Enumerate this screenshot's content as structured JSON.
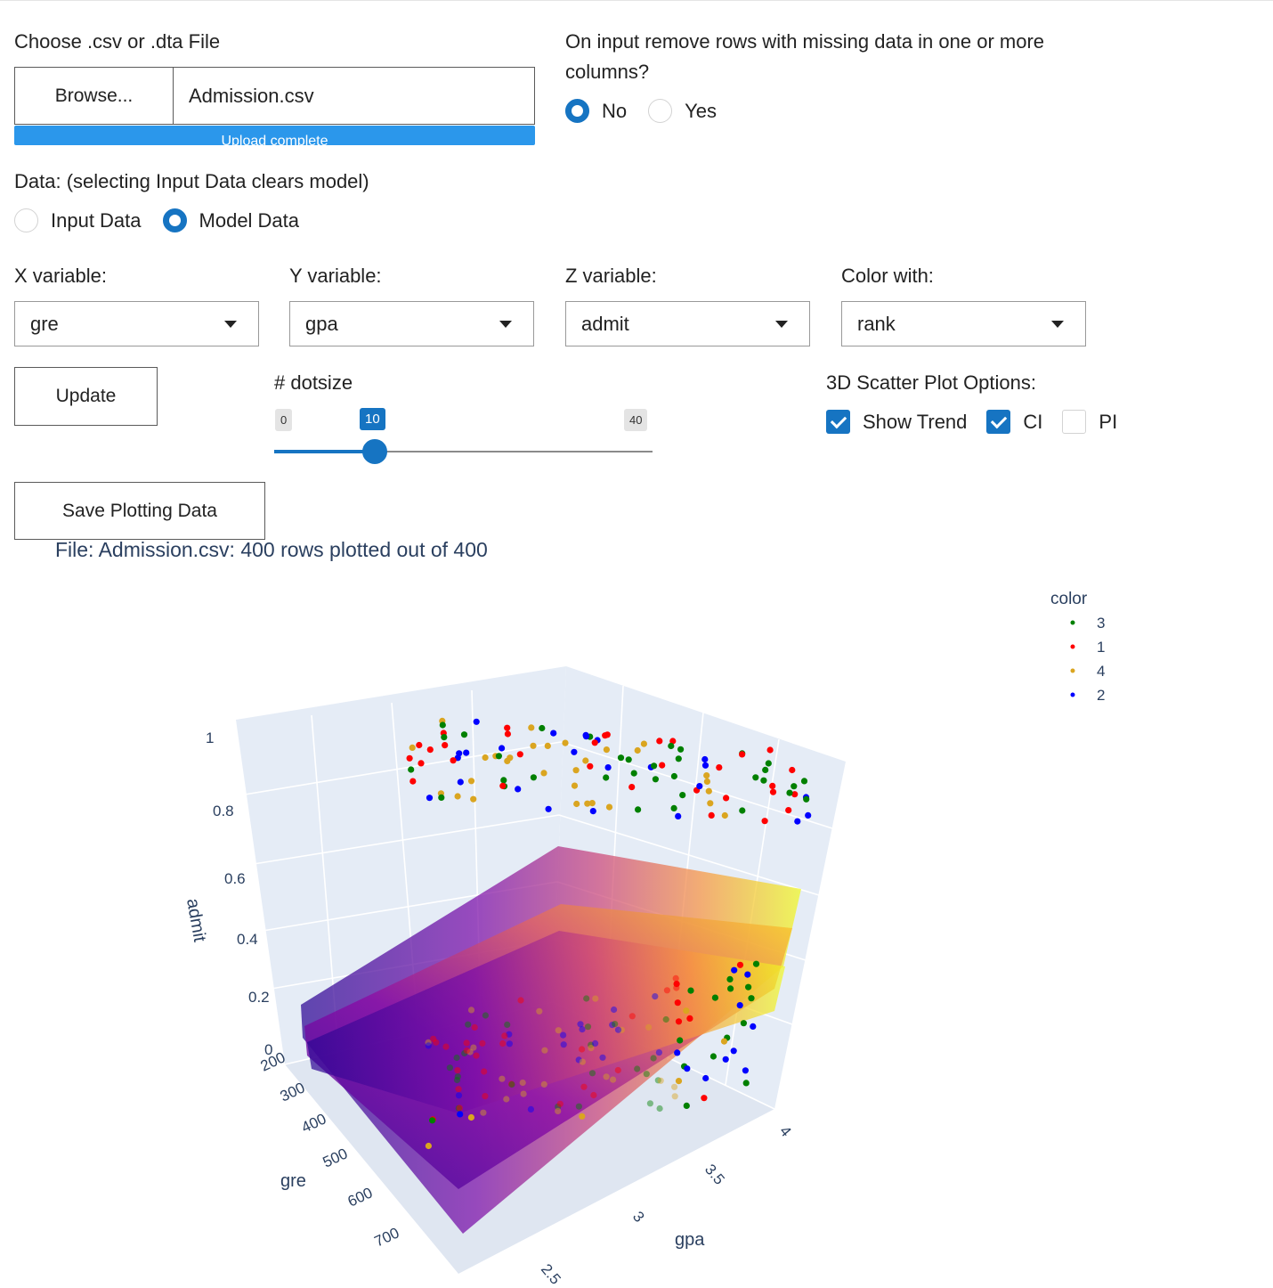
{
  "file_input": {
    "label": "Choose .csv or .dta File",
    "browse_label": "Browse...",
    "filename": "Admission.csv",
    "upload_status": "Upload complete",
    "upload_progress": 1.0
  },
  "missing_rows": {
    "label": "On input remove rows with missing data in one or more columns?",
    "options": [
      "No",
      "Yes"
    ],
    "selected": "No"
  },
  "data_source": {
    "label": "Data: (selecting Input Data clears model)",
    "options": [
      "Input Data",
      "Model Data"
    ],
    "selected": "Model Data"
  },
  "variables": {
    "x": {
      "label": "X variable:",
      "value": "gre"
    },
    "y": {
      "label": "Y variable:",
      "value": "gpa"
    },
    "z": {
      "label": "Z variable:",
      "value": "admit"
    },
    "color": {
      "label": "Color with:",
      "value": "rank"
    }
  },
  "update_label": "Update",
  "dotsize": {
    "label": "# dotsize",
    "min": "0",
    "max": "40",
    "value": "10",
    "fraction": 0.25
  },
  "scatter_options": {
    "label": "3D Scatter Plot Options:",
    "items": [
      {
        "label": "Show Trend",
        "checked": true
      },
      {
        "label": "CI",
        "checked": true
      },
      {
        "label": "PI",
        "checked": false
      }
    ]
  },
  "save_label": "Save Plotting Data",
  "status_text": "File: Admission.csv:  400 rows plotted out of 400",
  "colors": {
    "accent": "#1674c2",
    "progress": "#2b97eb",
    "scene_bg": "#e5ecf6",
    "axis_text": "#2a3f5f"
  },
  "chart_data": {
    "type": "scatter3d",
    "title": "",
    "xlabel": "gre",
    "ylabel": "gpa",
    "zlabel": "admit",
    "x_ticks": [
      "200",
      "300",
      "400",
      "500",
      "600",
      "700"
    ],
    "y_ticks": [
      "2.5",
      "3",
      "3.5",
      "4"
    ],
    "z_ticks": [
      "0",
      "0.2",
      "0.4",
      "0.6",
      "0.8",
      "1"
    ],
    "legend_title": "color",
    "legend_placement": "top-right",
    "series": [
      {
        "name": "3",
        "color": "#008000"
      },
      {
        "name": "1",
        "color": "#ff0000"
      },
      {
        "name": "4",
        "color": "#daa520"
      },
      {
        "name": "2",
        "color": "#0000ff"
      }
    ],
    "surfaces": [
      "trend",
      "ci-upper",
      "ci-lower"
    ],
    "colorscale": "plasma"
  }
}
